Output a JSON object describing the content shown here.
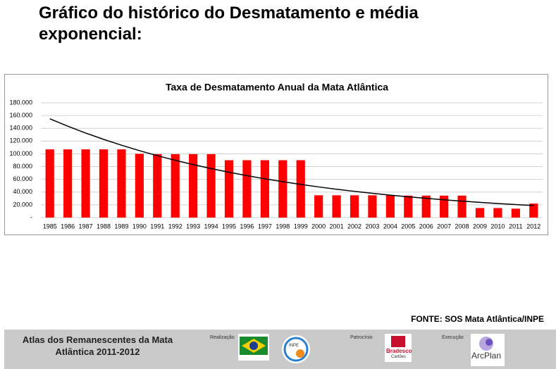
{
  "slide_title": "Gráfico do histórico do Desmatamento e média exponencial:",
  "chart_data": {
    "type": "bar",
    "title": "Taxa de Desmatamento Anual da Mata Atlântica",
    "categories": [
      "1985",
      "1986",
      "1987",
      "1988",
      "1989",
      "1990",
      "1991",
      "1992",
      "1993",
      "1994",
      "1995",
      "1996",
      "1997",
      "1998",
      "1999",
      "2000",
      "2001",
      "2002",
      "2003",
      "2004",
      "2005",
      "2006",
      "2007",
      "2008",
      "2009",
      "2010",
      "2011",
      "2012"
    ],
    "series": [
      {
        "type": "bar",
        "color": "#ff0000",
        "values": [
          107000,
          107000,
          107000,
          107000,
          107000,
          100000,
          99500,
          99500,
          99500,
          99500,
          90000,
          90000,
          90000,
          90000,
          90000,
          35000,
          35000,
          35000,
          35000,
          35000,
          34500,
          34500,
          34500,
          34500,
          15000,
          15000,
          14000,
          22000
        ]
      },
      {
        "type": "line",
        "color": "#000000",
        "values": [
          155000,
          143400,
          132600,
          122700,
          113500,
          105000,
          97100,
          89800,
          83100,
          76900,
          71100,
          65800,
          60800,
          56300,
          52000,
          48100,
          44500,
          41200,
          38100,
          35200,
          32600,
          30200,
          27900,
          25800,
          23900,
          22100,
          20400,
          18900
        ]
      }
    ],
    "ylim": [
      0,
      180000
    ],
    "yticks": [
      {
        "value": 0,
        "label": "-"
      },
      {
        "value": 20000,
        "label": "20.000"
      },
      {
        "value": 40000,
        "label": "40.000"
      },
      {
        "value": 60000,
        "label": "60.000"
      },
      {
        "value": 80000,
        "label": "80.000"
      },
      {
        "value": 100000,
        "label": "100.000"
      },
      {
        "value": 120000,
        "label": "120.000"
      },
      {
        "value": 140000,
        "label": "140.000"
      },
      {
        "value": 160000,
        "label": "160.000"
      },
      {
        "value": 180000,
        "label": "180.000"
      }
    ],
    "grid": true
  },
  "source": "FONTE: SOS Mata Atlântica/INPE",
  "footer": {
    "atlas": [
      "Atlas dos Remanescentes da Mata",
      "Atlântica 2011-2012"
    ],
    "realizacao": "Realização",
    "patrocinio": "Patrocínio",
    "execucao": "Execução",
    "inpe": "INPE",
    "bradesco": "Bradesco",
    "cartoes": "Cartões",
    "arcplan": "ArcPlan"
  }
}
